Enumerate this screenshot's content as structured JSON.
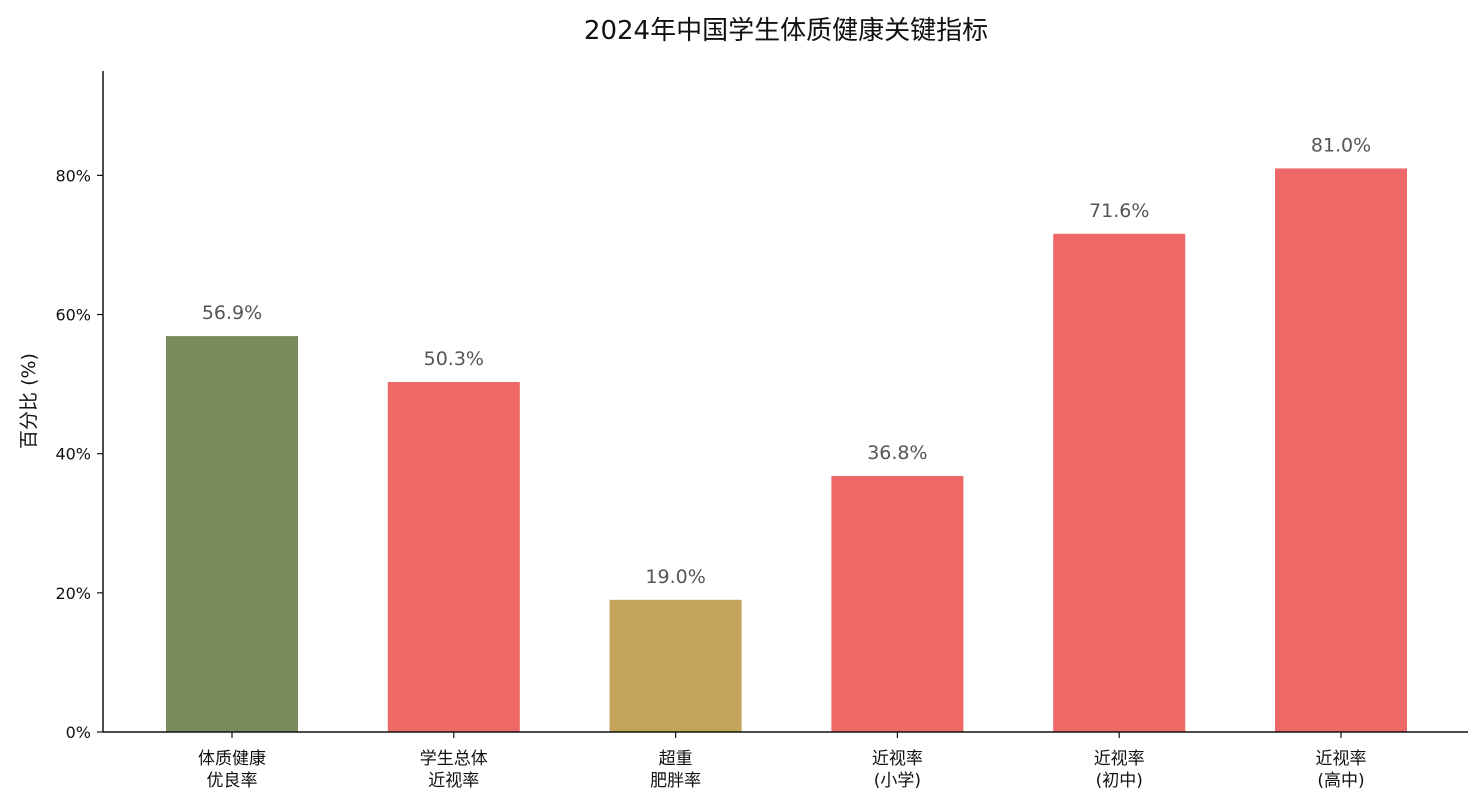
{
  "chart_data": {
    "type": "bar",
    "title": "2024年中国学生体质健康关键指标",
    "xlabel": "",
    "ylabel": "百分比 (%)",
    "ylim": [
      0,
      95
    ],
    "yticks": [
      0,
      20,
      40,
      60,
      80
    ],
    "ytick_format": "%",
    "grid": false,
    "legend": "none",
    "categories": [
      [
        "体质健康",
        "优良率"
      ],
      [
        "学生总体",
        "近视率"
      ],
      [
        "超重",
        "肥胖率"
      ],
      [
        "近视率",
        "(小学)"
      ],
      [
        "近视率",
        "(初中)"
      ],
      [
        "近视率",
        "(高中)"
      ]
    ],
    "values": [
      56.9,
      50.3,
      19.0,
      36.8,
      71.6,
      81.0
    ],
    "data_labels": [
      "56.9%",
      "50.3%",
      "19.0%",
      "36.8%",
      "71.6%",
      "81.0%"
    ],
    "colors": [
      "#7a8b5c",
      "#ee6868",
      "#c4a45a",
      "#ee6868",
      "#ee6868",
      "#ee6868"
    ]
  }
}
